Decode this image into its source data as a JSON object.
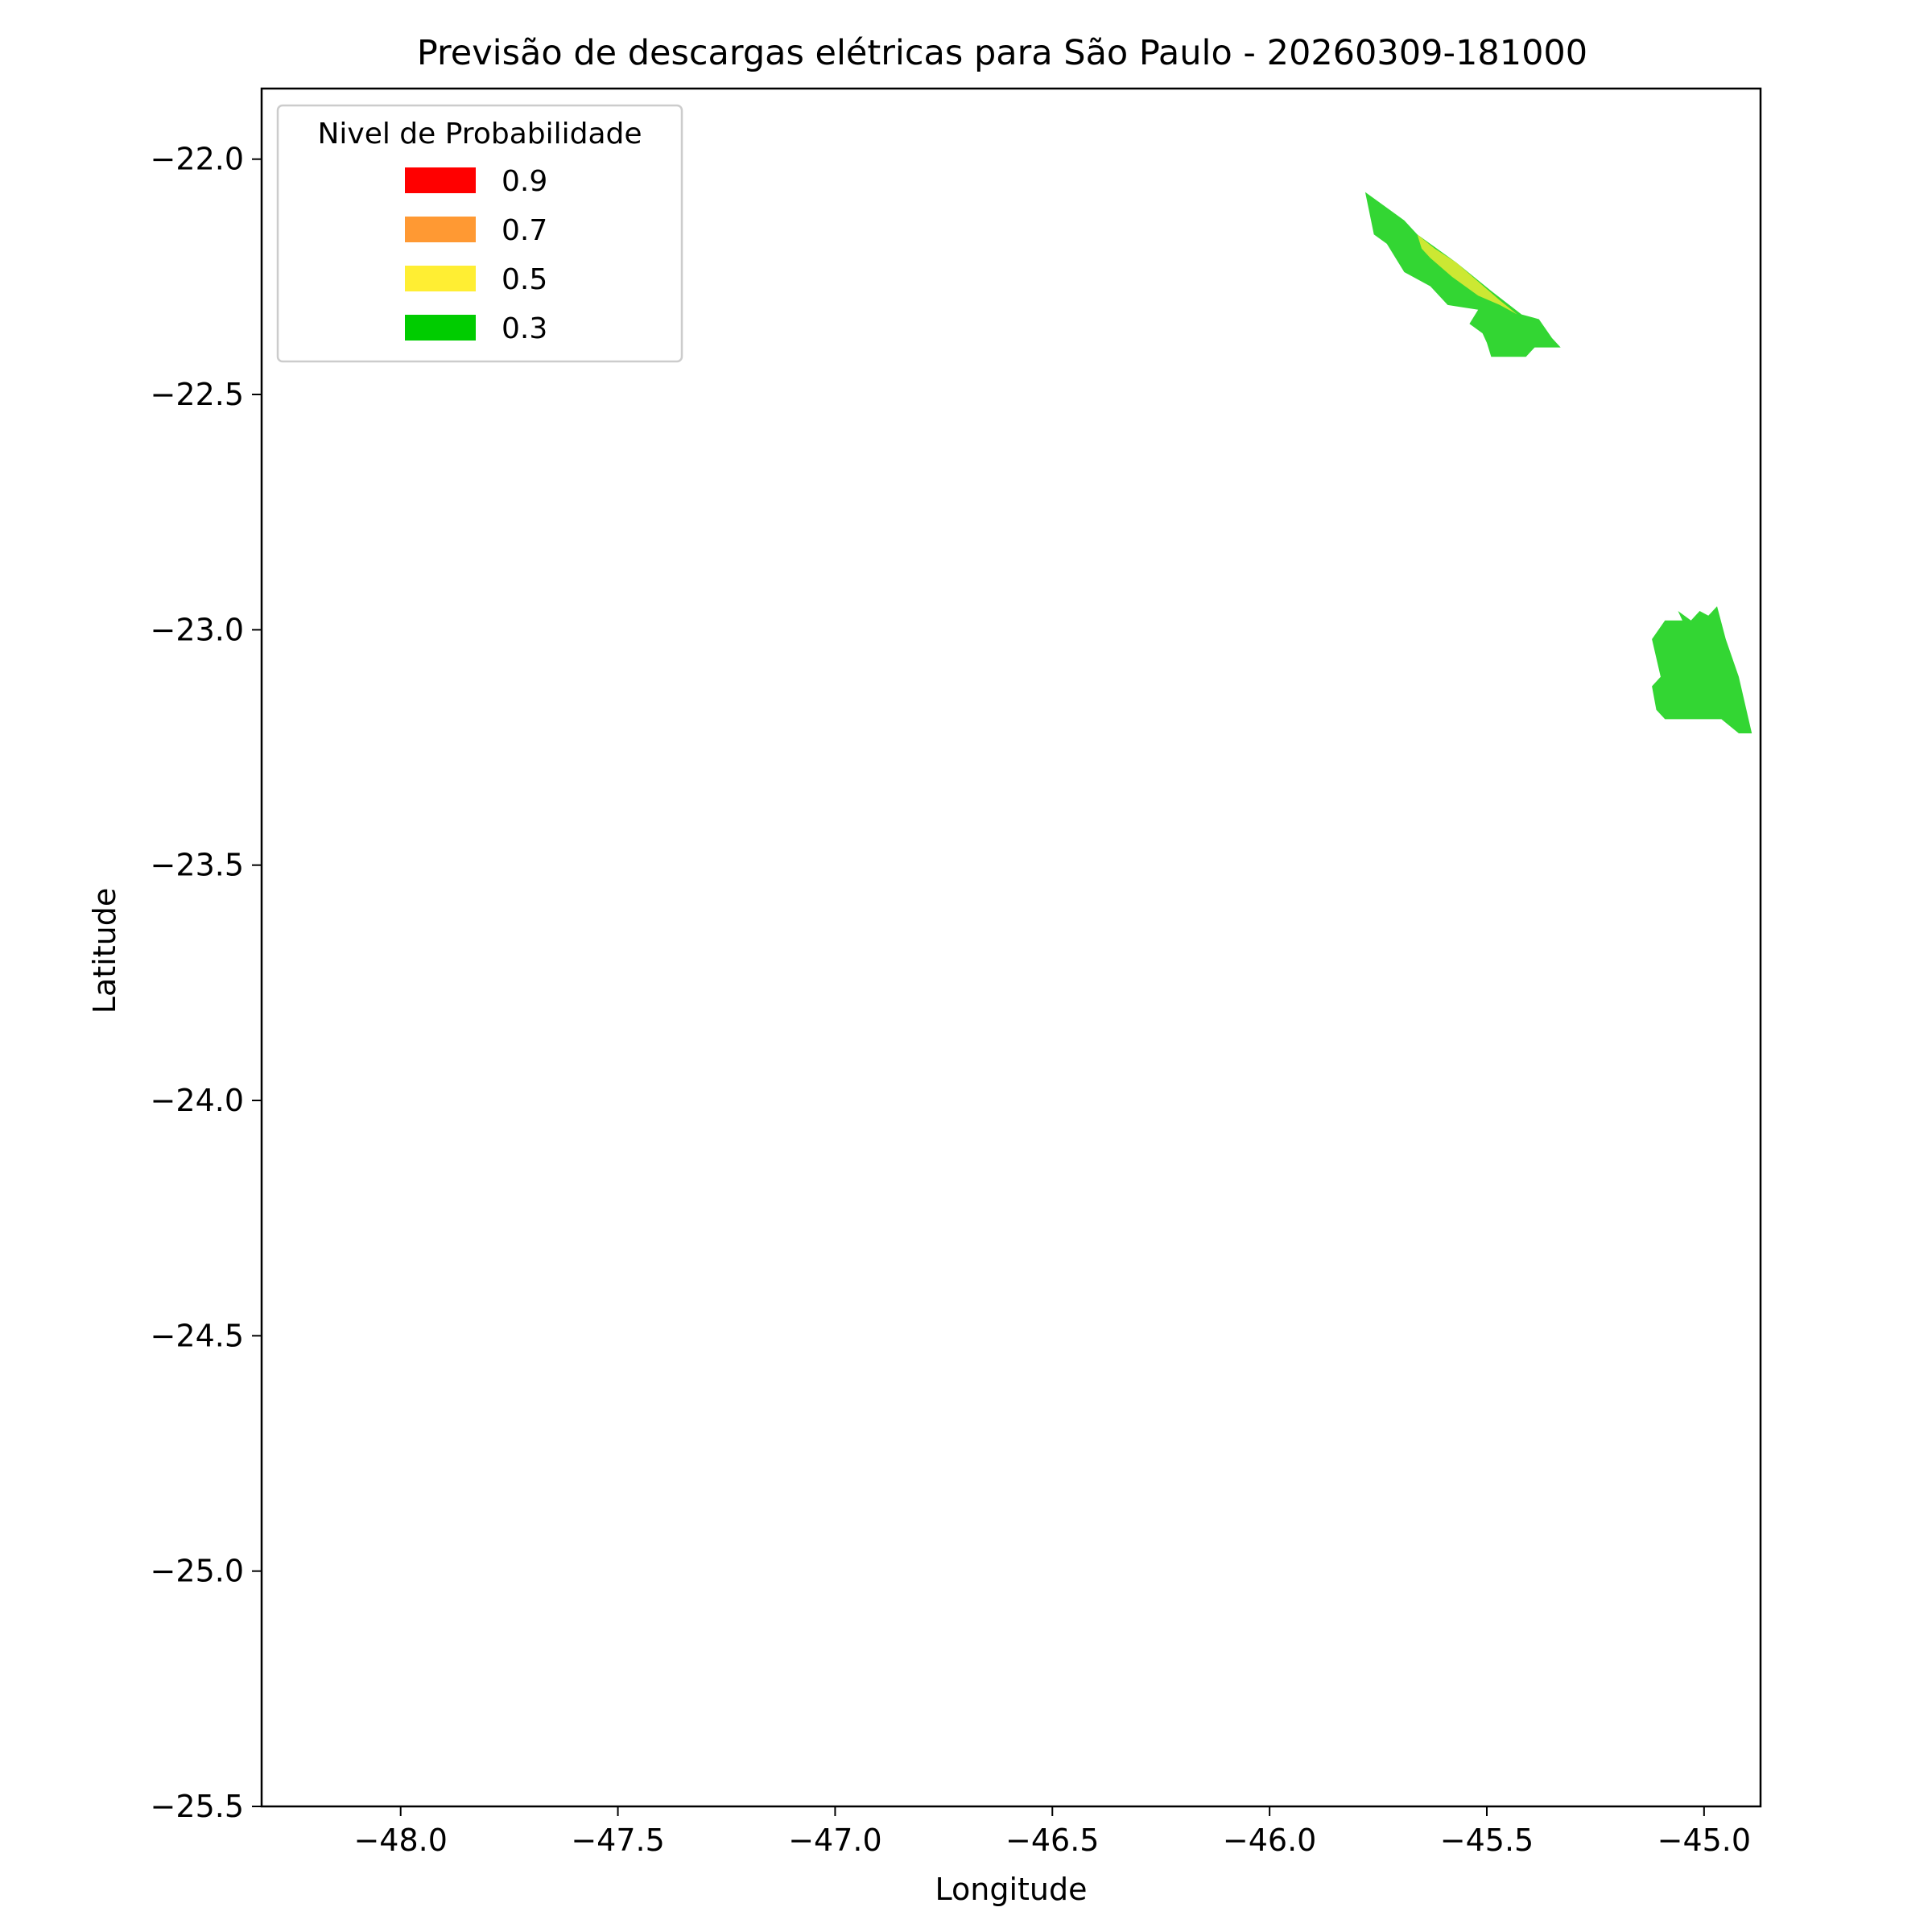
{
  "chart_data": {
    "type": "map",
    "title": "Previsão de descargas elétricas para São Paulo - 20260309-181000",
    "xlabel": "Longitude",
    "ylabel": "Latitude",
    "xlim": [
      -48.32,
      -44.87
    ],
    "ylim": [
      -25.5,
      -21.85
    ],
    "xticks": [
      -48.0,
      -47.5,
      -47.0,
      -46.5,
      -46.0,
      -45.5,
      -45.0
    ],
    "xtick_labels": [
      "−48.0",
      "−47.5",
      "−47.0",
      "−46.5",
      "−46.0",
      "−45.5",
      "−45.0"
    ],
    "yticks": [
      -22.0,
      -22.5,
      -23.0,
      -23.5,
      -24.0,
      -24.5,
      -25.0,
      -25.5
    ],
    "ytick_labels": [
      "−22.0",
      "−22.5",
      "−23.0",
      "−23.5",
      "−24.0",
      "−24.5",
      "−25.0",
      "−25.5"
    ],
    "grid": false,
    "legend": {
      "title": "Nivel de Probabilidade",
      "placement": "top-left",
      "entries": [
        {
          "label": "0.9",
          "color": "#ff0000"
        },
        {
          "label": "0.7",
          "color": "#ff9933"
        },
        {
          "label": "0.5",
          "color": "#ffee33"
        },
        {
          "label": "0.3",
          "color": "#00cc00"
        }
      ]
    },
    "regions": [
      {
        "level": "0.3",
        "color": "#33d633",
        "polygon": [
          [
            -45.78,
            -22.07
          ],
          [
            -45.72,
            -22.11
          ],
          [
            -45.69,
            -22.13
          ],
          [
            -45.66,
            -22.16
          ],
          [
            -45.57,
            -22.22
          ],
          [
            -45.49,
            -22.28
          ],
          [
            -45.42,
            -22.33
          ],
          [
            -45.38,
            -22.34
          ],
          [
            -45.35,
            -22.38
          ],
          [
            -45.33,
            -22.4
          ],
          [
            -45.39,
            -22.4
          ],
          [
            -45.41,
            -22.42
          ],
          [
            -45.49,
            -22.42
          ],
          [
            -45.5,
            -22.39
          ],
          [
            -45.51,
            -22.37
          ],
          [
            -45.54,
            -22.35
          ],
          [
            -45.52,
            -22.32
          ],
          [
            -45.59,
            -22.31
          ],
          [
            -45.63,
            -22.27
          ],
          [
            -45.69,
            -22.24
          ],
          [
            -45.71,
            -22.21
          ],
          [
            -45.73,
            -22.18
          ],
          [
            -45.76,
            -22.16
          ]
        ]
      },
      {
        "level": "0.5",
        "color": "#cce833",
        "polygon": [
          [
            -45.66,
            -22.16
          ],
          [
            -45.62,
            -22.19
          ],
          [
            -45.57,
            -22.22
          ],
          [
            -45.52,
            -22.26
          ],
          [
            -45.47,
            -22.3
          ],
          [
            -45.43,
            -22.33
          ],
          [
            -45.47,
            -22.31
          ],
          [
            -45.52,
            -22.29
          ],
          [
            -45.58,
            -22.25
          ],
          [
            -45.63,
            -22.21
          ],
          [
            -45.65,
            -22.19
          ]
        ]
      },
      {
        "level": "0.3",
        "color": "#33d633",
        "polygon": [
          [
            -45.12,
            -23.02
          ],
          [
            -45.09,
            -22.98
          ],
          [
            -45.05,
            -22.98
          ],
          [
            -45.06,
            -22.96
          ],
          [
            -45.03,
            -22.98
          ],
          [
            -45.01,
            -22.96
          ],
          [
            -44.99,
            -22.97
          ],
          [
            -44.97,
            -22.95
          ],
          [
            -44.95,
            -23.02
          ],
          [
            -44.92,
            -23.1
          ],
          [
            -44.9,
            -23.18
          ],
          [
            -44.89,
            -23.22
          ],
          [
            -44.92,
            -23.22
          ],
          [
            -44.96,
            -23.19
          ],
          [
            -45.09,
            -23.19
          ],
          [
            -45.11,
            -23.17
          ],
          [
            -45.12,
            -23.12
          ],
          [
            -45.1,
            -23.1
          ]
        ]
      }
    ]
  }
}
